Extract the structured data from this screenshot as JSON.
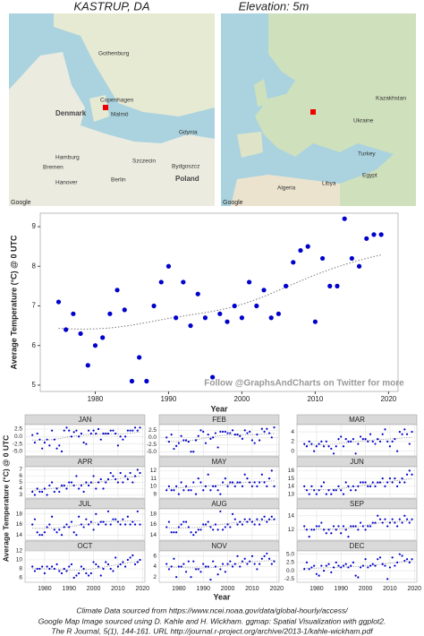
{
  "header": {
    "title": "KASTRUP, DA",
    "subtitle": "Elevation: 5m"
  },
  "maps": [
    {
      "labels": [
        "Gothenburg",
        "Denmark",
        "Copenhagen",
        "Malmö",
        "Hamburg",
        "Szczecin",
        "Gdynia",
        "Bremen",
        "Hanover",
        "Berlin",
        "Poland",
        "Bydgoszcz"
      ],
      "logo": "Google"
    },
    {
      "labels": [
        "Kazakhstan",
        "Turkey",
        "Algeria",
        "Libya",
        "Egypt",
        "Ukraine"
      ],
      "logo": "Google"
    }
  ],
  "chart_data": [
    {
      "type": "scatter",
      "xlabel": "Year",
      "ylabel": "Average Temperature (°C) @ 0 UTC",
      "annotation": "Follow @GraphsAndCharts on Twitter for more",
      "color": "#0000cc",
      "grid": false,
      "x": [
        1975,
        1976,
        1977,
        1978,
        1979,
        1980,
        1981,
        1982,
        1983,
        1984,
        1985,
        1986,
        1987,
        1988,
        1989,
        1990,
        1991,
        1992,
        1993,
        1994,
        1995,
        1996,
        1997,
        1998,
        1999,
        2000,
        2001,
        2002,
        2003,
        2004,
        2005,
        2006,
        2007,
        2008,
        2009,
        2010,
        2011,
        2012,
        2013,
        2014,
        2015,
        2016,
        2017,
        2018,
        2019
      ],
      "values": [
        7.1,
        6.4,
        6.8,
        6.3,
        5.5,
        6.0,
        6.2,
        6.8,
        7.4,
        6.9,
        5.1,
        5.7,
        5.1,
        7.0,
        7.6,
        8.0,
        6.7,
        7.6,
        6.5,
        7.3,
        6.7,
        5.2,
        6.8,
        6.6,
        7.0,
        6.7,
        7.6,
        7.0,
        7.4,
        6.7,
        6.8,
        7.5,
        8.1,
        8.4,
        8.5,
        6.6,
        8.2,
        7.5,
        7.5,
        9.2,
        8.2,
        8.0,
        8.7,
        8.8,
        8.8
      ],
      "xlim": [
        1972.5,
        2021.3
      ],
      "xticks": [
        1980,
        1990,
        2000,
        2010,
        2020
      ],
      "ylim": [
        4.84,
        9.34
      ],
      "yticks": [
        5,
        6,
        7,
        8,
        9
      ]
    },
    {
      "type": "facets",
      "xlabel": "Year",
      "ylabel": "Average Temperature (°C) @ 0 UTC",
      "color": "#0000cc",
      "grid": true,
      "x": [
        1975,
        1976,
        1977,
        1978,
        1979,
        1980,
        1981,
        1982,
        1983,
        1984,
        1985,
        1986,
        1987,
        1988,
        1989,
        1990,
        1991,
        1992,
        1993,
        1994,
        1995,
        1996,
        1997,
        1998,
        1999,
        2000,
        2001,
        2002,
        2003,
        2004,
        2005,
        2006,
        2007,
        2008,
        2009,
        2010,
        2011,
        2012,
        2013,
        2014,
        2015,
        2016,
        2017,
        2018,
        2019
      ],
      "xlim": [
        1972,
        2021
      ],
      "xticks": [
        1980,
        1990,
        2000,
        2010,
        2020
      ],
      "panels": [
        {
          "name": "JAN",
          "ylim": [
            -6.5,
            4
          ],
          "yticks": [
            {
              "value": -5,
              "label": "-5.0"
            },
            {
              "value": -2.5,
              "label": "-2.5"
            },
            {
              "value": 0,
              "label": "0.0"
            },
            {
              "value": 2.5,
              "label": "2.5"
            }
          ],
          "values": [
            0.5,
            -2.0,
            1.0,
            -1.0,
            -4.0,
            -2.0,
            -1.0,
            -3.0,
            2.0,
            -1.0,
            -4.0,
            -3.0,
            -5.0,
            2.0,
            3.0,
            2.0,
            0.0,
            1.5,
            2.0,
            0.0,
            1.0,
            -2.0,
            -2.5,
            2.0,
            1.0,
            2.0,
            1.0,
            2.5,
            -1.0,
            1.0,
            1.0,
            1.0,
            2.0,
            2.0,
            1.0,
            -3.0,
            0.0,
            -1.0,
            0.0,
            2.0,
            2.0,
            2.0,
            3.0,
            2.0,
            3.0
          ]
        },
        {
          "name": "FEB",
          "ylim": [
            -6.5,
            4.5
          ],
          "yticks": [
            {
              "value": -5,
              "label": "-5.0"
            },
            {
              "value": -2.5,
              "label": "-2.5"
            },
            {
              "value": 0,
              "label": "0.0"
            },
            {
              "value": 2.5,
              "label": "2.5"
            }
          ],
          "values": [
            0.0,
            -1.5,
            1.0,
            -4.0,
            -3.0,
            -2.0,
            0.5,
            -1.0,
            -1.0,
            -1.5,
            -5.0,
            -5.0,
            -1.0,
            0.5,
            2.5,
            2.0,
            -2.0,
            1.0,
            -0.5,
            0.0,
            1.5,
            -3.5,
            2.0,
            2.0,
            2.0,
            1.5,
            1.5,
            2.5,
            1.0,
            1.0,
            0.5,
            -0.5,
            2.5,
            1.5,
            2.0,
            -1.0,
            -2.0,
            1.0,
            -1.0,
            3.0,
            2.0,
            3.0,
            1.5,
            0.0,
            3.5
          ]
        },
        {
          "name": "MAR",
          "ylim": [
            -1,
            5.5
          ],
          "yticks": [
            0,
            2,
            4
          ],
          "values": [
            1.5,
            1.0,
            2.0,
            1.5,
            0.0,
            1.0,
            1.5,
            2.0,
            1.0,
            2.0,
            1.0,
            0.5,
            -0.5,
            1.0,
            2.5,
            3.0,
            1.0,
            2.5,
            2.0,
            2.0,
            2.5,
            -0.5,
            1.5,
            3.0,
            2.5,
            2.5,
            2.0,
            3.5,
            2.0,
            1.5,
            2.5,
            2.0,
            3.5,
            4.5,
            2.0,
            1.0,
            2.0,
            2.5,
            0.0,
            4.0,
            3.5,
            4.5,
            3.5,
            1.5,
            4.0
          ]
        },
        {
          "name": "APR",
          "ylim": [
            2.5,
            7.5
          ],
          "yticks": [
            3,
            4,
            5,
            6,
            7
          ],
          "values": [
            3.5,
            3.0,
            4.0,
            3.5,
            3.5,
            4.0,
            3.0,
            4.5,
            5.0,
            3.5,
            4.0,
            3.5,
            4.5,
            4.5,
            4.0,
            5.0,
            5.0,
            4.5,
            6.0,
            4.0,
            4.5,
            3.5,
            5.0,
            4.5,
            5.0,
            6.0,
            4.0,
            5.0,
            5.5,
            4.0,
            5.0,
            5.5,
            6.5,
            6.0,
            5.5,
            5.0,
            6.5,
            5.0,
            6.0,
            5.5,
            6.5,
            5.0,
            6.0,
            7.0,
            6.5
          ]
        },
        {
          "name": "MAY",
          "ylim": [
            8.5,
            12.5
          ],
          "yticks": [
            9,
            10,
            11,
            12
          ],
          "values": [
            9.5,
            10.0,
            9.5,
            9.5,
            10.0,
            9.0,
            10.5,
            9.5,
            10.0,
            9.5,
            9.5,
            10.5,
            9.0,
            11.0,
            10.5,
            9.5,
            10.0,
            11.5,
            9.5,
            10.0,
            10.0,
            9.5,
            9.0,
            10.5,
            11.0,
            10.0,
            10.5,
            10.5,
            10.0,
            10.5,
            10.5,
            10.0,
            11.5,
            11.0,
            10.5,
            10.0,
            10.5,
            10.0,
            10.5,
            11.5,
            10.5,
            10.0,
            11.0,
            12.0,
            10.0
          ]
        },
        {
          "name": "JUN",
          "ylim": [
            12.5,
            16.5
          ],
          "yticks": [
            13,
            14,
            15,
            16
          ],
          "values": [
            14.0,
            13.5,
            13.0,
            14.0,
            13.5,
            13.0,
            13.5,
            14.0,
            14.5,
            13.0,
            13.5,
            13.0,
            13.5,
            13.5,
            14.0,
            13.5,
            13.0,
            14.5,
            14.0,
            13.5,
            14.0,
            13.5,
            14.0,
            14.5,
            14.5,
            14.5,
            14.0,
            14.0,
            14.5,
            14.0,
            14.5,
            14.5,
            15.0,
            14.0,
            14.5,
            15.0,
            14.5,
            15.0,
            14.0,
            14.5,
            15.0,
            14.5,
            15.5,
            16.0,
            15.5
          ]
        },
        {
          "name": "JUL",
          "ylim": [
            13,
            19
          ],
          "yticks": [
            14,
            16,
            18
          ],
          "values": [
            16.0,
            17.0,
            14.5,
            14.0,
            14.0,
            14.5,
            15.5,
            16.0,
            17.5,
            15.0,
            14.5,
            15.0,
            14.0,
            15.5,
            16.0,
            15.5,
            16.5,
            14.5,
            14.0,
            17.5,
            16.0,
            15.5,
            17.0,
            16.0,
            16.5,
            15.0,
            18.0,
            16.0,
            16.5,
            16.5,
            16.0,
            18.5,
            16.0,
            17.0,
            17.0,
            16.5,
            16.0,
            17.0,
            16.0,
            17.5,
            16.0,
            16.5,
            16.0,
            18.5,
            16.0
          ]
        },
        {
          "name": "AUG",
          "ylim": [
            13,
            19
          ],
          "yticks": [
            14,
            16,
            18
          ],
          "values": [
            15.5,
            16.5,
            14.5,
            14.5,
            14.5,
            15.5,
            16.0,
            16.5,
            16.5,
            15.5,
            14.5,
            14.0,
            14.5,
            15.0,
            15.0,
            16.0,
            16.0,
            16.5,
            15.5,
            15.0,
            16.0,
            15.0,
            18.5,
            15.0,
            15.5,
            16.0,
            15.5,
            18.0,
            17.0,
            16.0,
            16.5,
            16.0,
            17.0,
            16.5,
            17.0,
            16.5,
            16.0,
            17.0,
            16.0,
            17.0,
            17.5,
            16.5,
            17.0,
            17.5,
            17.0
          ]
        },
        {
          "name": "SEP",
          "ylim": [
            10.5,
            15
          ],
          "yticks": [
            12,
            14
          ],
          "values": [
            12.5,
            12.0,
            11.0,
            12.0,
            12.0,
            12.5,
            12.5,
            13.0,
            12.0,
            11.5,
            12.0,
            11.5,
            12.5,
            12.0,
            12.5,
            11.5,
            12.5,
            12.0,
            11.0,
            12.5,
            12.5,
            12.5,
            12.0,
            13.0,
            12.5,
            12.0,
            12.5,
            12.5,
            13.0,
            13.0,
            14.0,
            13.5,
            13.0,
            13.5,
            12.5,
            13.0,
            13.5,
            13.0,
            12.5,
            13.5,
            13.0,
            14.0,
            13.5,
            13.0,
            13.5
          ]
        },
        {
          "name": "OCT",
          "ylim": [
            5,
            12
          ],
          "yticks": [
            6,
            8,
            10,
            12
          ],
          "values": [
            8.5,
            7.5,
            8.0,
            8.0,
            8.5,
            7.0,
            8.5,
            8.0,
            8.5,
            8.0,
            9.0,
            7.5,
            7.0,
            8.0,
            7.5,
            8.5,
            9.0,
            6.0,
            6.5,
            7.0,
            8.5,
            8.0,
            7.0,
            6.5,
            7.0,
            9.5,
            9.0,
            8.5,
            6.5,
            8.0,
            9.5,
            9.0,
            8.0,
            7.5,
            10.5,
            8.5,
            9.0,
            9.5,
            8.5,
            10.0,
            10.5,
            11.0,
            9.0,
            9.5,
            10.0
          ]
        },
        {
          "name": "NOV",
          "ylim": [
            1,
            7
          ],
          "yticks": [
            2,
            4,
            6
          ],
          "values": [
            4.5,
            3.5,
            4.0,
            5.5,
            2.0,
            4.0,
            4.0,
            4.5,
            3.0,
            5.0,
            2.0,
            5.0,
            3.5,
            3.5,
            3.0,
            4.5,
            4.0,
            4.0,
            1.5,
            5.0,
            4.0,
            2.5,
            3.5,
            4.5,
            3.0,
            4.5,
            5.0,
            4.0,
            4.5,
            6.0,
            4.0,
            5.0,
            5.5,
            4.5,
            5.0,
            6.0,
            4.5,
            3.5,
            4.5,
            5.5,
            6.0,
            6.5,
            5.5,
            4.5,
            5.0
          ]
        },
        {
          "name": "DEC",
          "ylim": [
            -3.5,
            6
          ],
          "yticks": [
            {
              "value": -2.5,
              "label": "-2.5"
            },
            {
              "value": 0,
              "label": "0.0"
            },
            {
              "value": 2.5,
              "label": "2.5"
            },
            {
              "value": 5,
              "label": "5.0"
            }
          ],
          "values": [
            0.5,
            2.5,
            0.5,
            1.0,
            1.5,
            -1.0,
            -1.5,
            1.5,
            0.0,
            1.5,
            2.0,
            -0.5,
            1.0,
            2.5,
            1.5,
            1.0,
            1.5,
            2.0,
            1.0,
            1.5,
            2.5,
            -1.5,
            -2.0,
            1.0,
            1.5,
            3.5,
            1.0,
            1.5,
            2.0,
            1.5,
            3.5,
            4.0,
            2.0,
            1.5,
            -2.5,
            1.0,
            4.0,
            1.5,
            2.5,
            5.0,
            4.5,
            3.0,
            3.5,
            2.5,
            3.5
          ]
        }
      ]
    }
  ],
  "footer": [
    "Climate Data sourced from https://www.ncei.noaa.gov/data/global-hourly/access/",
    "Google Map Image sourced using D. Kahle and H. Wickham. ggmap: Spatial Visualization with ggplot2.",
    "The R Journal, 5(1), 144-161. URL http://journal.r-project.org/archive/2013-1/kahle-wickham.pdf"
  ]
}
